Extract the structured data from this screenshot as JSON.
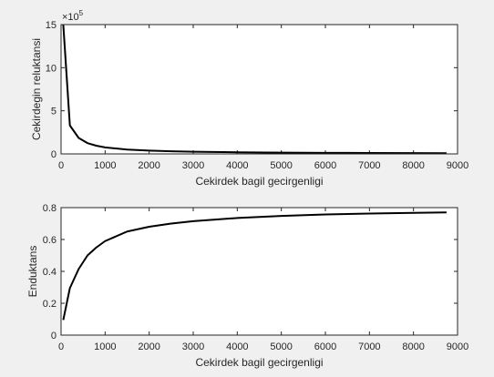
{
  "chart_data": [
    {
      "type": "line",
      "xlabel": "Cekirdek bagil gecirgenligi",
      "ylabel": "Cekirdegin reluktansi",
      "exponent_base": "×10",
      "exponent_power": "5",
      "xlim": [
        0,
        9000
      ],
      "ylim": [
        0,
        15
      ],
      "xticks": [
        0,
        1000,
        2000,
        3000,
        4000,
        5000,
        6000,
        7000,
        8000,
        9000
      ],
      "yticks": [
        0,
        5,
        10,
        15
      ],
      "xtick_labels": [
        "0",
        "1000",
        "2000",
        "3000",
        "4000",
        "5000",
        "6000",
        "7000",
        "8000",
        "9000"
      ],
      "ytick_labels": [
        "0",
        "5",
        "10",
        "15"
      ],
      "grid": false,
      "line_color": "#000000",
      "series": [
        {
          "x": [
            50,
            200,
            400,
            600,
            800,
            1000,
            1500,
            2000,
            2500,
            3000,
            4000,
            5000,
            6000,
            7000,
            8000,
            8750
          ],
          "y": [
            15.0,
            3.3,
            1.85,
            1.25,
            0.95,
            0.75,
            0.5,
            0.38,
            0.3,
            0.25,
            0.19,
            0.15,
            0.125,
            0.107,
            0.094,
            0.086
          ]
        }
      ]
    },
    {
      "type": "line",
      "xlabel": "Cekirdek bagil gecirgenligi",
      "ylabel": "Enduktans",
      "xlim": [
        0,
        9000
      ],
      "ylim": [
        0,
        0.8
      ],
      "xticks": [
        0,
        1000,
        2000,
        3000,
        4000,
        5000,
        6000,
        7000,
        8000,
        9000
      ],
      "yticks": [
        0,
        0.2,
        0.4,
        0.6,
        0.8
      ],
      "xtick_labels": [
        "0",
        "1000",
        "2000",
        "3000",
        "4000",
        "5000",
        "6000",
        "7000",
        "8000",
        "9000"
      ],
      "ytick_labels": [
        "0",
        "0.2",
        "0.4",
        "0.6",
        "0.8"
      ],
      "grid": false,
      "line_color": "#000000",
      "series": [
        {
          "x": [
            50,
            200,
            400,
            600,
            800,
            1000,
            1500,
            2000,
            2500,
            3000,
            4000,
            5000,
            6000,
            7000,
            8000,
            8750
          ],
          "y": [
            0.095,
            0.295,
            0.415,
            0.5,
            0.55,
            0.59,
            0.65,
            0.68,
            0.7,
            0.715,
            0.735,
            0.748,
            0.757,
            0.763,
            0.767,
            0.77
          ]
        }
      ]
    }
  ]
}
